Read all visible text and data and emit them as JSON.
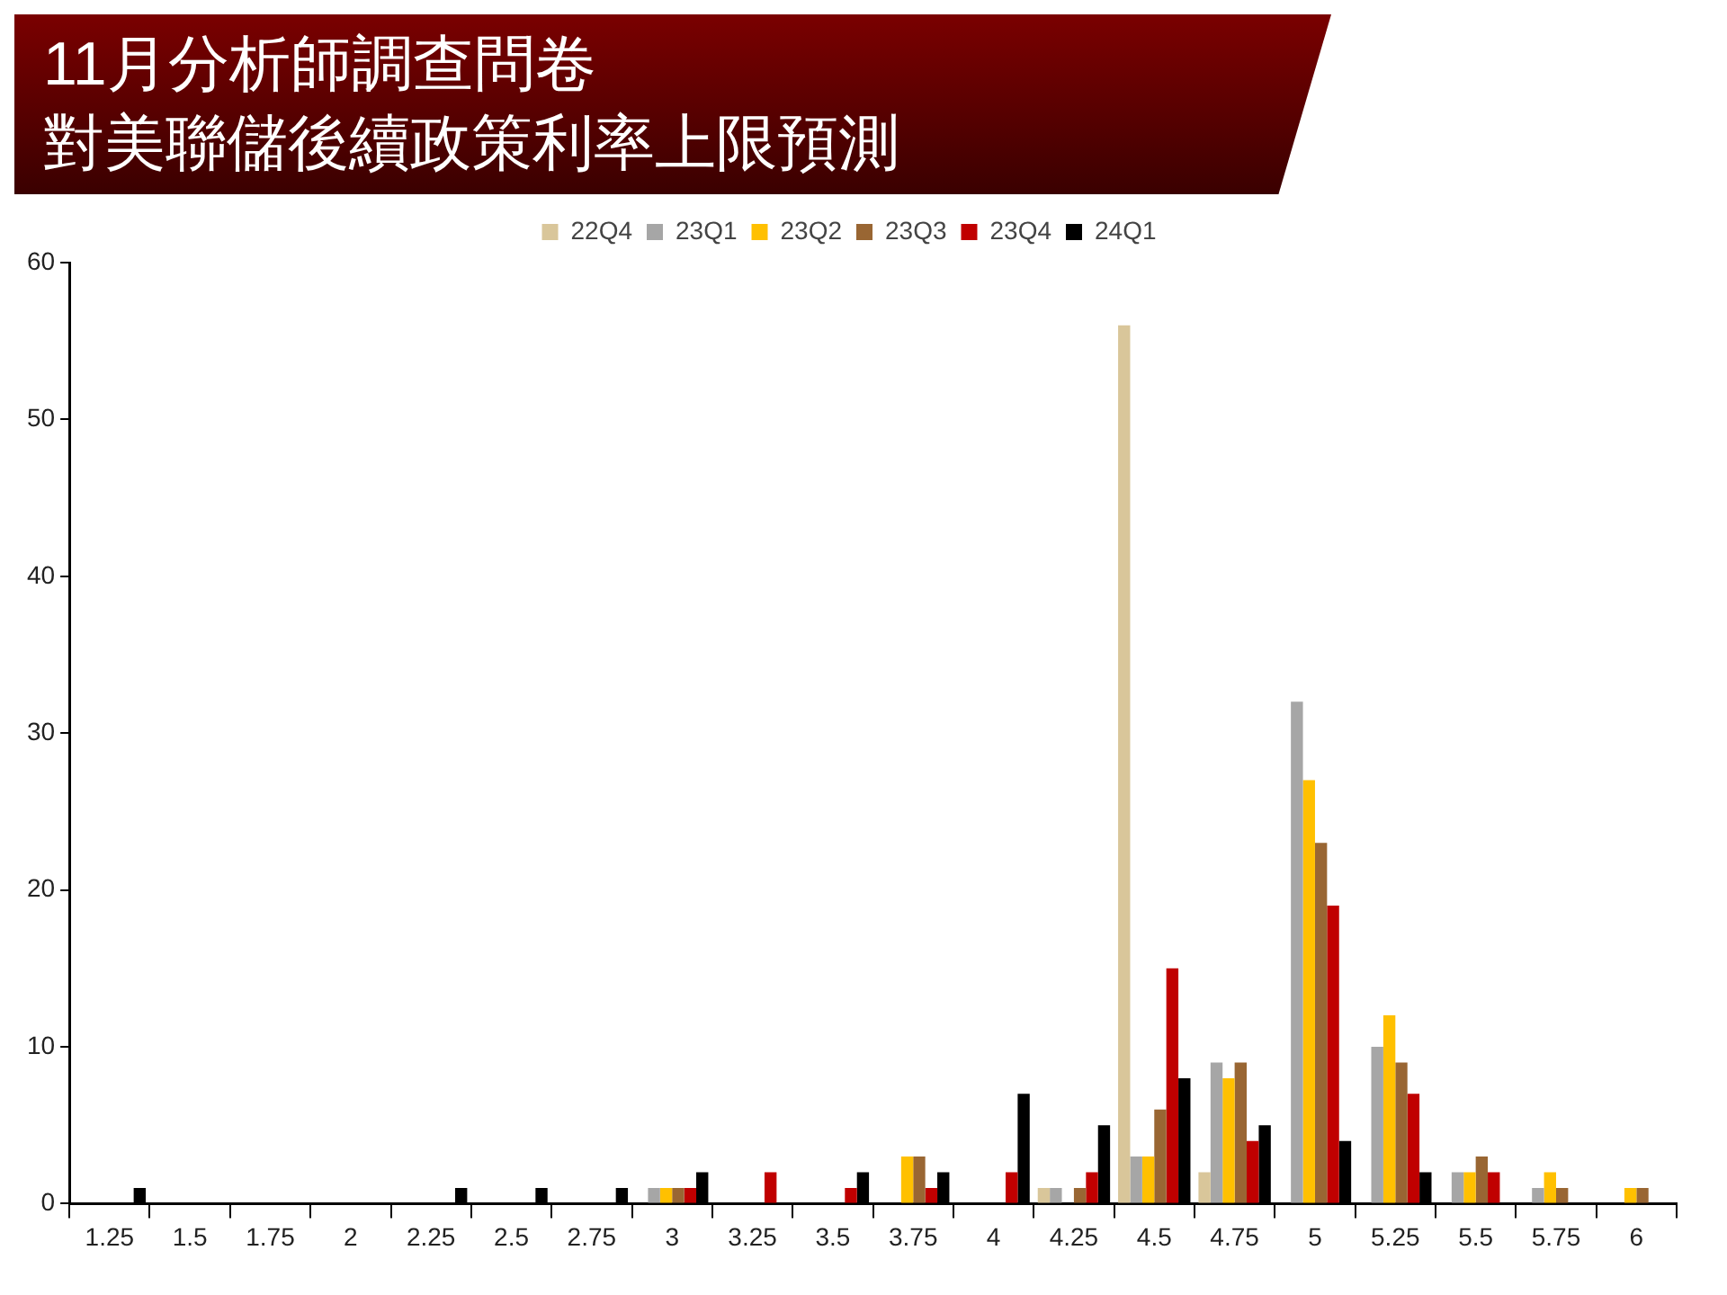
{
  "chart_data": {
    "type": "bar",
    "title": "11月分析師調查問卷",
    "subtitle": "對美聯儲後續政策利率上限預測",
    "categories": [
      "1.25",
      "1.5",
      "1.75",
      "2",
      "2.25",
      "2.5",
      "2.75",
      "3",
      "3.25",
      "3.5",
      "3.75",
      "4",
      "4.25",
      "4.5",
      "4.75",
      "5",
      "5.25",
      "5.5",
      "5.75",
      "6"
    ],
    "series": [
      {
        "name": "22Q4",
        "color": "#d9c69a",
        "values": [
          0,
          0,
          0,
          0,
          0,
          0,
          0,
          0,
          0,
          0,
          0,
          0,
          1,
          56,
          2,
          0,
          0,
          0,
          0,
          0
        ]
      },
      {
        "name": "23Q1",
        "color": "#a6a6a6",
        "values": [
          0,
          0,
          0,
          0,
          0,
          0,
          0,
          1,
          0,
          0,
          0,
          0,
          1,
          3,
          9,
          32,
          10,
          2,
          1,
          0
        ]
      },
      {
        "name": "23Q2",
        "color": "#ffc000",
        "values": [
          0,
          0,
          0,
          0,
          0,
          0,
          0,
          1,
          0,
          0,
          3,
          0,
          0,
          3,
          8,
          27,
          12,
          2,
          2,
          1
        ]
      },
      {
        "name": "23Q3",
        "color": "#996633",
        "values": [
          0,
          0,
          0,
          0,
          0,
          0,
          0,
          1,
          0,
          0,
          3,
          0,
          1,
          6,
          9,
          23,
          9,
          3,
          1,
          1
        ]
      },
      {
        "name": "23Q4",
        "color": "#c00000",
        "values": [
          0,
          0,
          0,
          0,
          0,
          0,
          0,
          1,
          2,
          1,
          1,
          2,
          2,
          15,
          4,
          19,
          7,
          2,
          0,
          0
        ]
      },
      {
        "name": "24Q1",
        "color": "#000000",
        "values": [
          1,
          0,
          0,
          0,
          1,
          1,
          1,
          2,
          0,
          2,
          2,
          7,
          5,
          8,
          5,
          4,
          2,
          0,
          0,
          0
        ]
      }
    ],
    "ylim": [
      0,
      60
    ],
    "yticks": [
      0,
      10,
      20,
      30,
      40,
      50,
      60
    ],
    "grid": false,
    "legend": "top"
  }
}
